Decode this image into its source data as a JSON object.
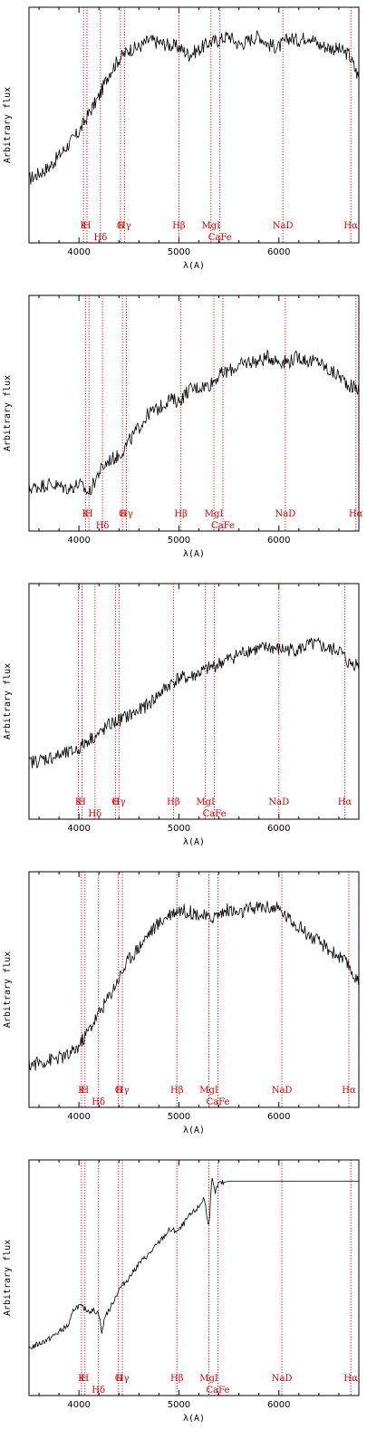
{
  "chart_data": [
    {
      "type": "line",
      "xlabel": "λ(A)",
      "ylabel": "Arbitrary flux",
      "xlim": [
        3500,
        6800
      ],
      "x_ticks": [
        "4000",
        "5000",
        "6000"
      ],
      "lines": [
        {
          "name": "K",
          "x": 4045,
          "row": "top"
        },
        {
          "name": "H",
          "x": 4080,
          "row": "top"
        },
        {
          "name": "Hδ",
          "x": 4215,
          "row": "bottom"
        },
        {
          "name": "G",
          "x": 4415,
          "row": "top"
        },
        {
          "name": "Hγ",
          "x": 4455,
          "row": "top"
        },
        {
          "name": "Hβ",
          "x": 5000,
          "row": "top"
        },
        {
          "name": "MgI",
          "x": 5320,
          "row": "top"
        },
        {
          "name": "CaFe",
          "x": 5410,
          "row": "bottom"
        },
        {
          "name": "NaD",
          "x": 6040,
          "row": "top"
        },
        {
          "name": "Hα",
          "x": 6720,
          "row": "top"
        }
      ],
      "spectrum": {
        "x": [
          3500,
          3700,
          3900,
          4000,
          4100,
          4200,
          4300,
          4400,
          4500,
          4600,
          4700,
          4800,
          4900,
          5000,
          5100,
          5200,
          5300,
          5400,
          5500,
          5600,
          5700,
          5800,
          5900,
          6000,
          6100,
          6200,
          6300,
          6400,
          6500,
          6600,
          6700,
          6800
        ],
        "y": [
          0.27,
          0.32,
          0.42,
          0.47,
          0.55,
          0.62,
          0.72,
          0.78,
          0.82,
          0.83,
          0.86,
          0.85,
          0.84,
          0.83,
          0.8,
          0.82,
          0.85,
          0.86,
          0.88,
          0.84,
          0.86,
          0.88,
          0.84,
          0.83,
          0.87,
          0.86,
          0.88,
          0.84,
          0.83,
          0.82,
          0.8,
          0.7
        ]
      }
    },
    {
      "type": "line",
      "xlabel": "λ(A)",
      "ylabel": "Arbitrary flux",
      "xlim": [
        3500,
        6800
      ],
      "x_ticks": [
        "4000",
        "5000",
        "6000"
      ],
      "lines": [
        {
          "name": "K",
          "x": 4065,
          "row": "top"
        },
        {
          "name": "H",
          "x": 4100,
          "row": "top"
        },
        {
          "name": "Hδ",
          "x": 4235,
          "row": "bottom"
        },
        {
          "name": "G",
          "x": 4435,
          "row": "top"
        },
        {
          "name": "Hγ",
          "x": 4475,
          "row": "top"
        },
        {
          "name": "Hβ",
          "x": 5020,
          "row": "top"
        },
        {
          "name": "MgI",
          "x": 5350,
          "row": "top"
        },
        {
          "name": "CaFe",
          "x": 5440,
          "row": "bottom"
        },
        {
          "name": "NaD",
          "x": 6065,
          "row": "top"
        },
        {
          "name": "Hα",
          "x": 6770,
          "row": "top"
        }
      ],
      "spectrum": {
        "x": [
          3500,
          3700,
          3900,
          4000,
          4100,
          4200,
          4300,
          4400,
          4500,
          4600,
          4700,
          4800,
          4900,
          5000,
          5100,
          5200,
          5300,
          5400,
          5500,
          5600,
          5700,
          5800,
          5900,
          6000,
          6100,
          6200,
          6300,
          6400,
          6500,
          6600,
          6700,
          6800
        ],
        "y": [
          0.18,
          0.2,
          0.18,
          0.2,
          0.16,
          0.25,
          0.3,
          0.32,
          0.38,
          0.44,
          0.5,
          0.52,
          0.56,
          0.55,
          0.6,
          0.61,
          0.62,
          0.66,
          0.68,
          0.7,
          0.72,
          0.72,
          0.74,
          0.72,
          0.72,
          0.74,
          0.72,
          0.72,
          0.68,
          0.66,
          0.62,
          0.6
        ]
      }
    },
    {
      "type": "line",
      "xlabel": "λ(A)",
      "ylabel": "Arbitrary flux",
      "xlim": [
        3500,
        6800
      ],
      "x_ticks": [
        "4000",
        "5000",
        "6000"
      ],
      "lines": [
        {
          "name": "K",
          "x": 3995,
          "row": "top"
        },
        {
          "name": "H",
          "x": 4030,
          "row": "top"
        },
        {
          "name": "Hδ",
          "x": 4160,
          "row": "bottom"
        },
        {
          "name": "G",
          "x": 4365,
          "row": "top"
        },
        {
          "name": "Hγ",
          "x": 4400,
          "row": "top"
        },
        {
          "name": "Hβ",
          "x": 4945,
          "row": "top"
        },
        {
          "name": "MgI",
          "x": 5265,
          "row": "top"
        },
        {
          "name": "CaFe",
          "x": 5355,
          "row": "bottom"
        },
        {
          "name": "NaD",
          "x": 6000,
          "row": "top"
        },
        {
          "name": "Hα",
          "x": 6660,
          "row": "top"
        }
      ],
      "spectrum": {
        "x": [
          3500,
          3700,
          3900,
          4000,
          4100,
          4200,
          4300,
          4400,
          4500,
          4600,
          4700,
          4800,
          4900,
          5000,
          5100,
          5200,
          5300,
          5400,
          5500,
          5600,
          5700,
          5800,
          5900,
          6000,
          6100,
          6200,
          6300,
          6400,
          6500,
          6600,
          6700,
          6800
        ],
        "y": [
          0.24,
          0.26,
          0.28,
          0.3,
          0.34,
          0.36,
          0.4,
          0.42,
          0.44,
          0.46,
          0.49,
          0.53,
          0.57,
          0.6,
          0.6,
          0.62,
          0.64,
          0.66,
          0.68,
          0.7,
          0.72,
          0.72,
          0.73,
          0.72,
          0.72,
          0.72,
          0.74,
          0.74,
          0.72,
          0.72,
          0.66,
          0.66
        ]
      }
    },
    {
      "type": "line",
      "xlabel": "λ(A)",
      "ylabel": "Arbitrary flux",
      "xlim": [
        3500,
        6800
      ],
      "x_ticks": [
        "4000",
        "5000",
        "6000"
      ],
      "lines": [
        {
          "name": "K",
          "x": 4025,
          "row": "top"
        },
        {
          "name": "H",
          "x": 4060,
          "row": "top"
        },
        {
          "name": "Hδ",
          "x": 4195,
          "row": "bottom"
        },
        {
          "name": "G",
          "x": 4395,
          "row": "top"
        },
        {
          "name": "Hγ",
          "x": 4435,
          "row": "top"
        },
        {
          "name": "Hβ",
          "x": 4980,
          "row": "top"
        },
        {
          "name": "MgI",
          "x": 5300,
          "row": "top"
        },
        {
          "name": "CaFe",
          "x": 5390,
          "row": "bottom"
        },
        {
          "name": "NaD",
          "x": 6030,
          "row": "top"
        },
        {
          "name": "Hα",
          "x": 6700,
          "row": "top"
        }
      ],
      "spectrum": {
        "x": [
          3500,
          3700,
          3900,
          4000,
          4100,
          4200,
          4300,
          4400,
          4500,
          4600,
          4700,
          4800,
          4900,
          5000,
          5100,
          5200,
          5300,
          5400,
          5500,
          5600,
          5700,
          5800,
          5900,
          6000,
          6100,
          6200,
          6300,
          6400,
          6500,
          6600,
          6700,
          6800
        ],
        "y": [
          0.18,
          0.2,
          0.22,
          0.26,
          0.33,
          0.4,
          0.47,
          0.55,
          0.63,
          0.68,
          0.74,
          0.78,
          0.82,
          0.84,
          0.83,
          0.82,
          0.8,
          0.82,
          0.84,
          0.82,
          0.84,
          0.85,
          0.85,
          0.84,
          0.8,
          0.77,
          0.73,
          0.7,
          0.67,
          0.64,
          0.6,
          0.52
        ]
      }
    },
    {
      "type": "line",
      "xlabel": "λ(A)",
      "ylabel": "Arbitrary flux",
      "xlim": [
        3500,
        6800
      ],
      "x_ticks": [
        "4000",
        "5000",
        "6000"
      ],
      "lines": [
        {
          "name": "K",
          "x": 4025,
          "row": "top"
        },
        {
          "name": "H",
          "x": 4060,
          "row": "top"
        },
        {
          "name": "Hδ",
          "x": 4195,
          "row": "bottom"
        },
        {
          "name": "G",
          "x": 4395,
          "row": "top"
        },
        {
          "name": "Hγ",
          "x": 4435,
          "row": "top"
        },
        {
          "name": "Hβ",
          "x": 4980,
          "row": "top"
        },
        {
          "name": "MgI",
          "x": 5300,
          "row": "top"
        },
        {
          "name": "CaFe",
          "x": 5390,
          "row": "bottom"
        },
        {
          "name": "NaD",
          "x": 6030,
          "row": "top"
        },
        {
          "name": "Hα",
          "x": 6720,
          "row": "top"
        }
      ],
      "spectrum": {
        "x": [
          3500,
          3600,
          3700,
          3800,
          3900,
          3950,
          4000,
          4050,
          4100,
          4150,
          4200,
          4230,
          4260,
          4300,
          4400,
          4500,
          4600,
          4700,
          4800,
          4900,
          5000,
          5050,
          5100,
          5200,
          5250,
          5300,
          5330,
          5360,
          5400,
          5500,
          6000,
          6800
        ],
        "y": [
          0.2,
          0.22,
          0.24,
          0.27,
          0.3,
          0.37,
          0.38,
          0.37,
          0.36,
          0.36,
          0.35,
          0.26,
          0.34,
          0.36,
          0.45,
          0.5,
          0.56,
          0.6,
          0.65,
          0.7,
          0.7,
          0.73,
          0.76,
          0.8,
          0.84,
          0.72,
          0.92,
          0.86,
          0.9,
          0.91,
          0.91,
          0.91
        ]
      }
    }
  ]
}
